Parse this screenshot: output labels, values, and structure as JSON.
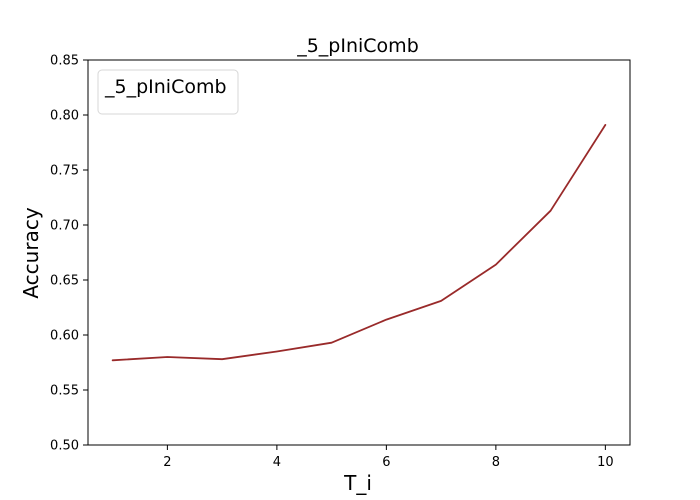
{
  "chart_data": {
    "type": "line",
    "title": "_5_pIniComb",
    "xlabel": "T_i",
    "ylabel": "Accuracy",
    "xlim": [
      0.55,
      10.45
    ],
    "ylim": [
      0.5,
      0.85
    ],
    "x_ticks": [
      2,
      4,
      6,
      8,
      10
    ],
    "y_ticks": [
      0.5,
      0.55,
      0.6,
      0.65,
      0.7,
      0.75,
      0.8,
      0.85
    ],
    "y_tick_labels": [
      "0.50",
      "0.55",
      "0.60",
      "0.65",
      "0.70",
      "0.75",
      "0.80",
      "0.85"
    ],
    "grid": false,
    "legend": {
      "position": "top-left",
      "entries": [
        "_5_pIniComb"
      ]
    },
    "series": [
      {
        "name": "_5_pIniComb",
        "color": "#992A2A",
        "x": [
          1,
          2,
          3,
          4,
          5,
          6,
          7,
          8,
          9,
          10
        ],
        "values": [
          0.577,
          0.58,
          0.578,
          0.585,
          0.593,
          0.614,
          0.631,
          0.664,
          0.713,
          0.791
        ]
      }
    ]
  }
}
